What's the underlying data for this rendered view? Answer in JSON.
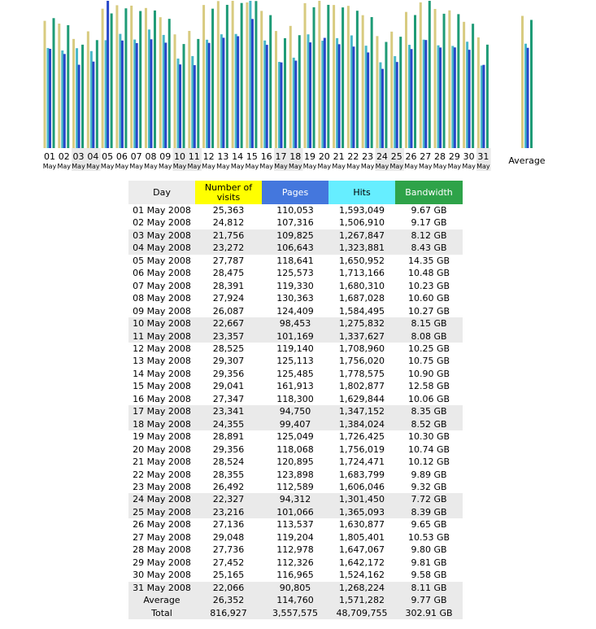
{
  "colors": {
    "visits": "#d8cb80",
    "pages": "#48b8c8",
    "hits": "#1e9b76",
    "bandwidth": "#2747c8",
    "visits_header": "#ffff00",
    "pages_header": "#4477dd",
    "hits_header": "#66eeff",
    "bandwidth_header": "#2ea349",
    "weekend_row": "#eaeaea"
  },
  "table": {
    "headers": {
      "day": "Day",
      "visits": "Number of visits",
      "pages": "Pages",
      "hits": "Hits",
      "bandwidth": "Bandwidth"
    },
    "rows": [
      {
        "day": "01 May 2008",
        "visits": "25,363",
        "pages": "110,053",
        "hits": "1,593,049",
        "bandwidth": "9.67 GB",
        "weekend": false
      },
      {
        "day": "02 May 2008",
        "visits": "24,812",
        "pages": "107,316",
        "hits": "1,506,910",
        "bandwidth": "9.17 GB",
        "weekend": false
      },
      {
        "day": "03 May 2008",
        "visits": "21,756",
        "pages": "109,825",
        "hits": "1,267,847",
        "bandwidth": "8.12 GB",
        "weekend": true
      },
      {
        "day": "04 May 2008",
        "visits": "23,272",
        "pages": "106,643",
        "hits": "1,323,881",
        "bandwidth": "8.43 GB",
        "weekend": true
      },
      {
        "day": "05 May 2008",
        "visits": "27,787",
        "pages": "118,641",
        "hits": "1,650,952",
        "bandwidth": "14.35 GB",
        "weekend": false
      },
      {
        "day": "06 May 2008",
        "visits": "28,475",
        "pages": "125,573",
        "hits": "1,713,166",
        "bandwidth": "10.48 GB",
        "weekend": false
      },
      {
        "day": "07 May 2008",
        "visits": "28,391",
        "pages": "119,330",
        "hits": "1,680,310",
        "bandwidth": "10.23 GB",
        "weekend": false
      },
      {
        "day": "08 May 2008",
        "visits": "27,924",
        "pages": "130,363",
        "hits": "1,687,028",
        "bandwidth": "10.60 GB",
        "weekend": false
      },
      {
        "day": "09 May 2008",
        "visits": "26,087",
        "pages": "124,409",
        "hits": "1,584,495",
        "bandwidth": "10.27 GB",
        "weekend": false
      },
      {
        "day": "10 May 2008",
        "visits": "22,667",
        "pages": "98,453",
        "hits": "1,275,832",
        "bandwidth": "8.15 GB",
        "weekend": true
      },
      {
        "day": "11 May 2008",
        "visits": "23,357",
        "pages": "101,169",
        "hits": "1,337,627",
        "bandwidth": "8.08 GB",
        "weekend": true
      },
      {
        "day": "12 May 2008",
        "visits": "28,525",
        "pages": "119,140",
        "hits": "1,708,960",
        "bandwidth": "10.25 GB",
        "weekend": false
      },
      {
        "day": "13 May 2008",
        "visits": "29,307",
        "pages": "125,113",
        "hits": "1,756,020",
        "bandwidth": "10.75 GB",
        "weekend": false
      },
      {
        "day": "14 May 2008",
        "visits": "29,356",
        "pages": "125,485",
        "hits": "1,778,575",
        "bandwidth": "10.90 GB",
        "weekend": false
      },
      {
        "day": "15 May 2008",
        "visits": "29,041",
        "pages": "161,913",
        "hits": "1,802,877",
        "bandwidth": "12.58 GB",
        "weekend": false
      },
      {
        "day": "16 May 2008",
        "visits": "27,347",
        "pages": "118,300",
        "hits": "1,629,844",
        "bandwidth": "10.06 GB",
        "weekend": false
      },
      {
        "day": "17 May 2008",
        "visits": "23,341",
        "pages": "94,750",
        "hits": "1,347,152",
        "bandwidth": "8.35 GB",
        "weekend": true
      },
      {
        "day": "18 May 2008",
        "visits": "24,355",
        "pages": "99,407",
        "hits": "1,384,024",
        "bandwidth": "8.52 GB",
        "weekend": true
      },
      {
        "day": "19 May 2008",
        "visits": "28,891",
        "pages": "125,049",
        "hits": "1,726,425",
        "bandwidth": "10.30 GB",
        "weekend": false
      },
      {
        "day": "20 May 2008",
        "visits": "29,356",
        "pages": "118,068",
        "hits": "1,756,019",
        "bandwidth": "10.74 GB",
        "weekend": false
      },
      {
        "day": "21 May 2008",
        "visits": "28,524",
        "pages": "120,895",
        "hits": "1,724,471",
        "bandwidth": "10.12 GB",
        "weekend": false
      },
      {
        "day": "22 May 2008",
        "visits": "28,355",
        "pages": "123,898",
        "hits": "1,683,799",
        "bandwidth": "9.89 GB",
        "weekend": false
      },
      {
        "day": "23 May 2008",
        "visits": "26,492",
        "pages": "112,589",
        "hits": "1,606,046",
        "bandwidth": "9.32 GB",
        "weekend": false
      },
      {
        "day": "24 May 2008",
        "visits": "22,327",
        "pages": "94,312",
        "hits": "1,301,450",
        "bandwidth": "7.72 GB",
        "weekend": true
      },
      {
        "day": "25 May 2008",
        "visits": "23,216",
        "pages": "101,066",
        "hits": "1,365,093",
        "bandwidth": "8.39 GB",
        "weekend": true
      },
      {
        "day": "26 May 2008",
        "visits": "27,136",
        "pages": "113,537",
        "hits": "1,630,877",
        "bandwidth": "9.65 GB",
        "weekend": false
      },
      {
        "day": "27 May 2008",
        "visits": "29,048",
        "pages": "119,204",
        "hits": "1,805,401",
        "bandwidth": "10.53 GB",
        "weekend": false
      },
      {
        "day": "28 May 2008",
        "visits": "27,736",
        "pages": "112,978",
        "hits": "1,647,067",
        "bandwidth": "9.80 GB",
        "weekend": false
      },
      {
        "day": "29 May 2008",
        "visits": "27,452",
        "pages": "112,326",
        "hits": "1,642,172",
        "bandwidth": "9.81 GB",
        "weekend": false
      },
      {
        "day": "30 May 2008",
        "visits": "25,165",
        "pages": "116,965",
        "hits": "1,524,162",
        "bandwidth": "9.58 GB",
        "weekend": false
      },
      {
        "day": "31 May 2008",
        "visits": "22,066",
        "pages": "90,805",
        "hits": "1,268,224",
        "bandwidth": "8.11 GB",
        "weekend": true
      }
    ],
    "average": {
      "label": "Average",
      "visits": "26,352",
      "pages": "114,760",
      "hits": "1,571,282",
      "bandwidth": "9.77 GB"
    },
    "total": {
      "label": "Total",
      "visits": "816,927",
      "pages": "3,557,575",
      "hits": "48,709,755",
      "bandwidth": "302.91 GB"
    }
  },
  "chart_data": {
    "type": "bar",
    "grid": false,
    "legend": "none",
    "categories": [
      "01",
      "02",
      "03",
      "04",
      "05",
      "06",
      "07",
      "08",
      "09",
      "10",
      "11",
      "12",
      "13",
      "14",
      "15",
      "16",
      "17",
      "18",
      "19",
      "20",
      "21",
      "22",
      "23",
      "24",
      "25",
      "26",
      "27",
      "28",
      "29",
      "30",
      "31"
    ],
    "category_sublabel": "May",
    "weekend_categories": [
      "03",
      "04",
      "10",
      "11",
      "17",
      "18",
      "24",
      "25",
      "31"
    ],
    "average_label": "Average",
    "series": [
      {
        "key": "visits",
        "values": [
          25363,
          24812,
          21756,
          23272,
          27787,
          28475,
          28391,
          27924,
          26087,
          22667,
          23357,
          28525,
          29307,
          29356,
          29041,
          27347,
          23341,
          24355,
          28891,
          29356,
          28524,
          28355,
          26492,
          22327,
          23216,
          27136,
          29048,
          27736,
          27452,
          25165,
          22066
        ],
        "average": 26352
      },
      {
        "key": "pages",
        "values": [
          110053,
          107316,
          109825,
          106643,
          118641,
          125573,
          119330,
          130363,
          124409,
          98453,
          101169,
          119140,
          125113,
          125485,
          161913,
          118300,
          94750,
          99407,
          125049,
          118068,
          120895,
          123898,
          112589,
          94312,
          101066,
          113537,
          119204,
          112978,
          112326,
          116965,
          90805
        ],
        "average": 114760
      },
      {
        "key": "hits",
        "values": [
          1593049,
          1506910,
          1267847,
          1323881,
          1650952,
          1713166,
          1680310,
          1687028,
          1584495,
          1275832,
          1337627,
          1708960,
          1756020,
          1778575,
          1802877,
          1629844,
          1347152,
          1384024,
          1726425,
          1756019,
          1724471,
          1683799,
          1606046,
          1301450,
          1365093,
          1630877,
          1805401,
          1647067,
          1642172,
          1524162,
          1268224
        ],
        "average": 1571282
      },
      {
        "key": "bandwidth",
        "unit": "GB",
        "values": [
          9.67,
          9.17,
          8.12,
          8.43,
          14.35,
          10.48,
          10.23,
          10.6,
          10.27,
          8.15,
          8.08,
          10.25,
          10.75,
          10.9,
          12.58,
          10.06,
          8.35,
          8.52,
          10.3,
          10.74,
          10.12,
          9.89,
          9.32,
          7.72,
          8.39,
          9.65,
          10.53,
          9.8,
          9.81,
          9.58,
          8.11
        ],
        "average": 9.77
      }
    ]
  }
}
